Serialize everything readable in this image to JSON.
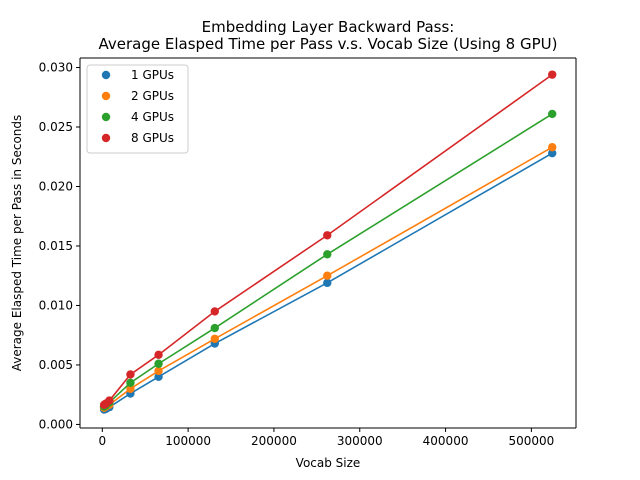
{
  "chart_data": {
    "type": "line",
    "title_line1": "Embedding Layer Backward Pass:",
    "title_line2": "Average Elasped Time per Pass v.s. Vocab Size (Using 8 GPU)",
    "xlabel": "Vocab Size",
    "ylabel": "Average Elasped Time per Pass in Seconds",
    "xlim": [
      -26000,
      552000
    ],
    "ylim": [
      -0.0003,
      0.0308
    ],
    "xticks": [
      0,
      100000,
      200000,
      300000,
      400000,
      500000
    ],
    "xtick_labels": [
      "0",
      "100000",
      "200000",
      "300000",
      "400000",
      "500000"
    ],
    "yticks": [
      0.0,
      0.005,
      0.01,
      0.015,
      0.02,
      0.025,
      0.03
    ],
    "ytick_labels": [
      "0.000",
      "0.005",
      "0.010",
      "0.015",
      "0.020",
      "0.025",
      "0.030"
    ],
    "grid": false,
    "legend_position": "top-left",
    "x": [
      2048,
      4096,
      8192,
      32768,
      65536,
      131072,
      262144,
      524288
    ],
    "series": [
      {
        "name": "1 GPUs",
        "color": "#1f77b4",
        "values": [
          0.00125,
          0.0013,
          0.00145,
          0.0026,
          0.004,
          0.0068,
          0.0119,
          0.0228
        ]
      },
      {
        "name": "2 GPUs",
        "color": "#ff7f0e",
        "values": [
          0.0014,
          0.0015,
          0.00165,
          0.003,
          0.0045,
          0.0072,
          0.0125,
          0.0233
        ]
      },
      {
        "name": "4 GPUs",
        "color": "#2ca02c",
        "values": [
          0.0015,
          0.0016,
          0.00185,
          0.0035,
          0.0051,
          0.0081,
          0.0143,
          0.0261
        ]
      },
      {
        "name": "8 GPUs",
        "color": "#d62728",
        "values": [
          0.00165,
          0.00175,
          0.002,
          0.0042,
          0.00585,
          0.0095,
          0.0159,
          0.0294
        ]
      }
    ]
  }
}
